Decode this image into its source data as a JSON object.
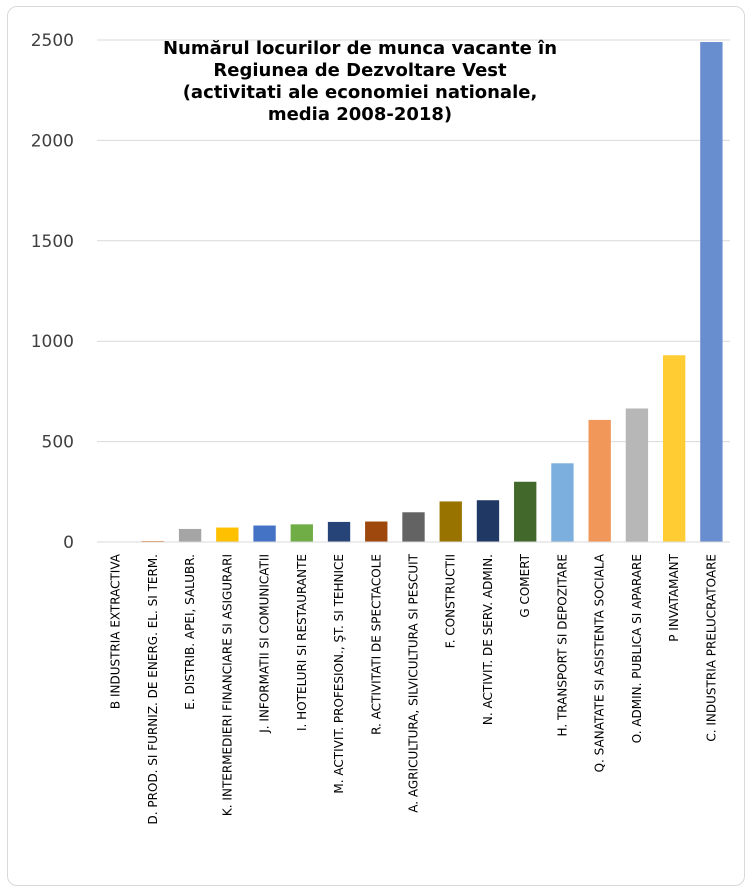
{
  "chart_data": {
    "type": "bar",
    "title": "Numărul locurilor de munca vacante în\nRegiunea de Dezvoltare Vest\n(activitati ale economiei nationale,\nmedia 2008-2018)",
    "xlabel": "",
    "ylabel": "",
    "ylim": [
      0,
      2500
    ],
    "yticks": [
      0,
      500,
      1000,
      1500,
      2000,
      2500
    ],
    "grid": true,
    "legend": "none",
    "categories": [
      "B INDUSTRIA EXTRACTIVA",
      "D. PROD. SI FURNIZ. DE ENERG. EL. SI TERM.",
      "E. DISTRIB. APEI, SALUBR.",
      "K. INTERMEDIERI FINANCIARE SI ASIGURARI",
      "J. INFORMATII SI COMUNICATII",
      "I. HOTELURI SI RESTAURANTE",
      "M. ACTIVIT. PROFESION., ŞT. SI TEHNICE",
      "R. ACTIVITATI DE SPECTACOLE",
      "A. AGRICULTURA, SILVICULTURA SI PESCUIT",
      "F. CONSTRUCTII",
      "N. ACTIVIT. DE SERV. ADMIN.",
      "G COMERT",
      "H. TRANSPORT SI DEPOZITARE",
      "Q. SANATATE SI ASISTENTA SOCIALA",
      "O. ADMIN. PUBLICA SI APARARE",
      "P INVATAMANT",
      "C. INDUSTRIA PRELUCRATOARE"
    ],
    "values": [
      2,
      5,
      65,
      72,
      82,
      88,
      100,
      102,
      148,
      202,
      208,
      300,
      392,
      608,
      665,
      930,
      2490
    ],
    "colors": [
      "#8faadc",
      "#ed7d31",
      "#a5a5a5",
      "#ffc000",
      "#4472c4",
      "#70ad47",
      "#264478",
      "#9e480e",
      "#636363",
      "#997300",
      "#203864",
      "#43682b",
      "#7cafdd",
      "#f1975a",
      "#b7b7b7",
      "#ffcd33",
      "#698ed0"
    ]
  }
}
